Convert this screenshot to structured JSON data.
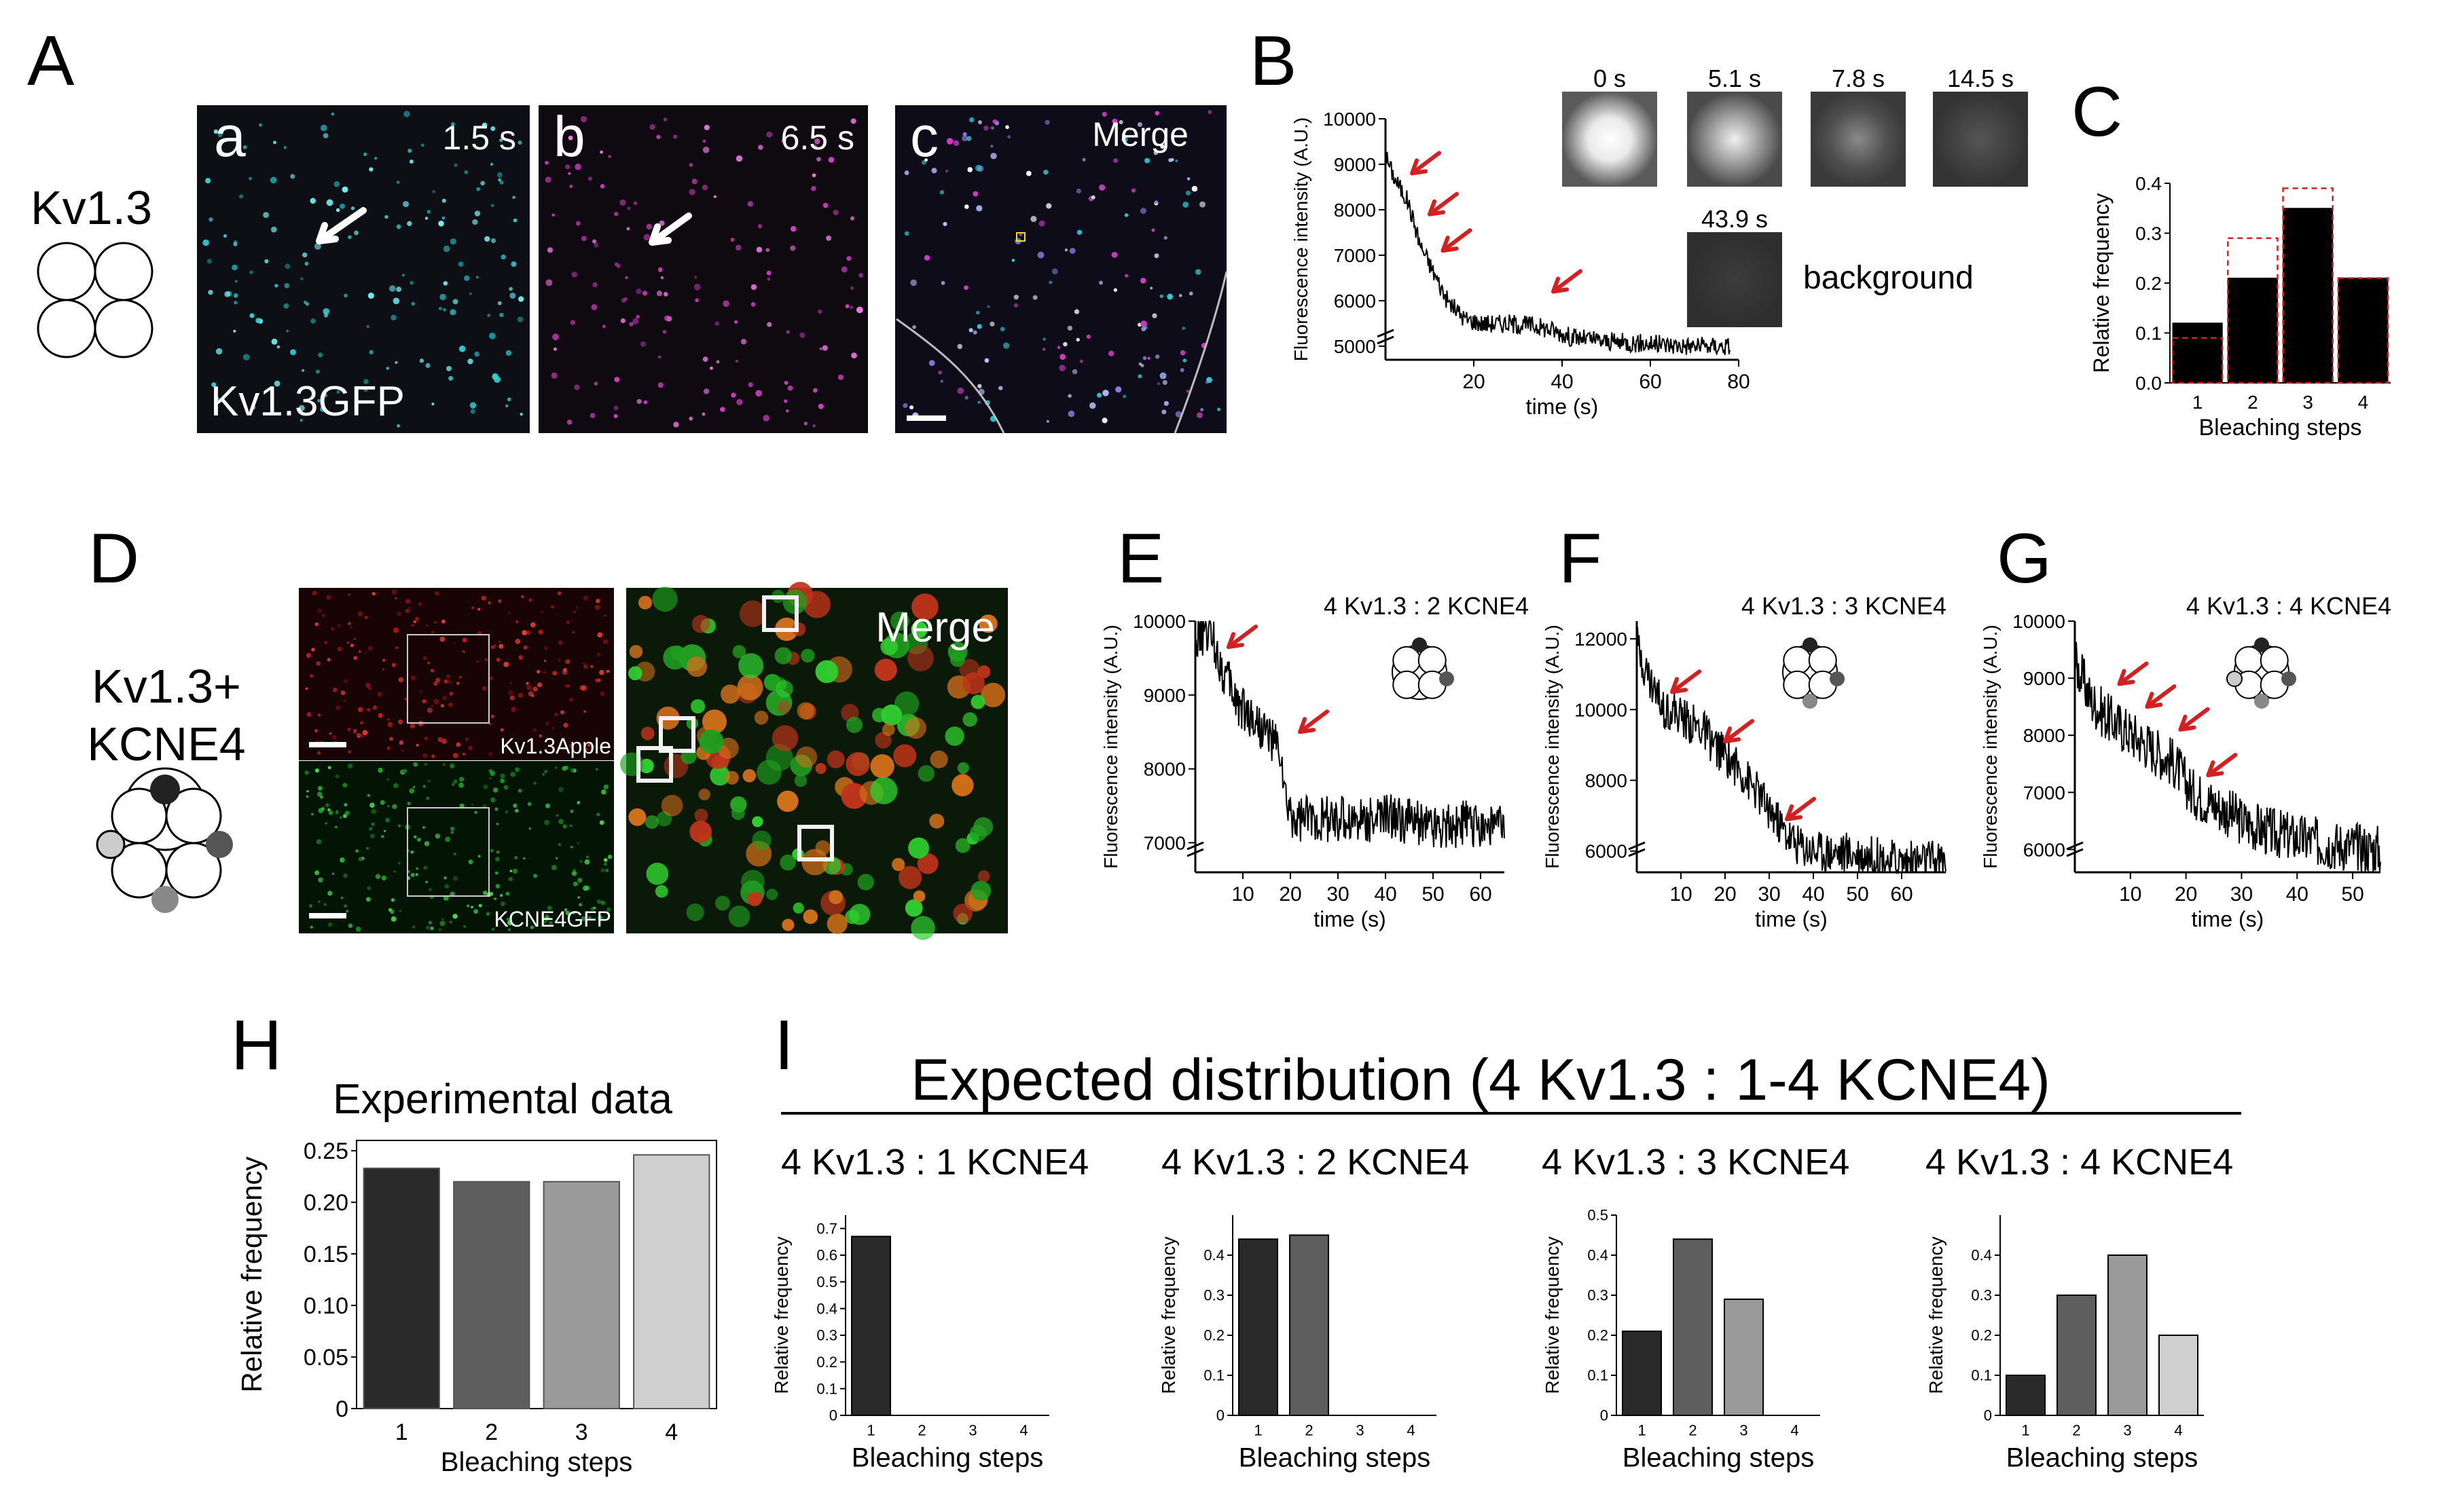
{
  "panel_letters": {
    "A": "A",
    "B": "B",
    "C": "C",
    "D": "D",
    "E": "E",
    "F": "F",
    "G": "G",
    "H": "H",
    "I": "I"
  },
  "panelA": {
    "construct": "Kv1.3",
    "sub_a": "a",
    "sub_b": "b",
    "sub_c": "c",
    "time_a": "1.5 s",
    "time_b": "6.5 s",
    "merge": "Merge",
    "label": "Kv1.3GFP",
    "colors": {
      "cyan": "#2fd1d6",
      "magenta": "#d63fc8"
    }
  },
  "panelB": {
    "ylabel": "Fluorescence intensity (A.U.)",
    "xlabel": "time (s)",
    "yticks": [
      "10000",
      "9000",
      "8000",
      "7000",
      "6000",
      "5000"
    ],
    "xticks": [
      "20",
      "40",
      "60",
      "80"
    ],
    "thumbs": [
      "0 s",
      "5.1 s",
      "7.8 s",
      "14.5 s"
    ],
    "thumb_bg_time": "43.9 s",
    "background": "background"
  },
  "panelC": {
    "ylabel": "Relative frequency",
    "xlabel": "Bleaching steps",
    "yticks": [
      "0.4",
      "0.3",
      "0.2",
      "0.1",
      "0.0"
    ],
    "categories": [
      "1",
      "2",
      "3",
      "4"
    ],
    "values": [
      0.12,
      0.21,
      0.35,
      0.21
    ],
    "expected": [
      0.09,
      0.29,
      0.39,
      0.21
    ]
  },
  "panelD": {
    "construct_l1": "Kv1.3+",
    "construct_l2": "KCNE4",
    "red_label": "Kv1.3Apple",
    "green_label": "KCNE4GFP",
    "merge": "Merge"
  },
  "panelE": {
    "title": "4 Kv1.3 : 2 KCNE4",
    "ylabel": "Fluorescence intensity (A.U.)",
    "xlabel": "time (s)",
    "yticks": [
      "10000",
      "9000",
      "8000",
      "7000"
    ],
    "xticks": [
      "10",
      "20",
      "30",
      "40",
      "50",
      "60"
    ]
  },
  "panelF": {
    "title": "4 Kv1.3 : 3 KCNE4",
    "ylabel": "Fluorescence intensity (A.U.)",
    "xlabel": "time (s)",
    "yticks": [
      "12000",
      "10000",
      "8000",
      "6000"
    ],
    "xticks": [
      "10",
      "20",
      "30",
      "40",
      "50",
      "60"
    ]
  },
  "panelG": {
    "title": "4 Kv1.3 : 4 KCNE4",
    "ylabel": "Fluorescence intensity (A.U.)",
    "xlabel": "time (s)",
    "yticks": [
      "10000",
      "9000",
      "8000",
      "7000",
      "6000"
    ],
    "xticks": [
      "10",
      "20",
      "30",
      "40",
      "50"
    ]
  },
  "panelH": {
    "title": "Experimental data",
    "ylabel": "Relative frequency",
    "xlabel": "Bleaching steps",
    "yticks": [
      "0.25",
      "0.20",
      "0.15",
      "0.10",
      "0.05",
      "0"
    ]
  },
  "panelI": {
    "title": "Expected distribution (4 Kv1.3 : 1-4 KCNE4)"
  },
  "chart_data": [
    {
      "type": "line",
      "id": "B",
      "xlabel": "time (s)",
      "ylabel": "Fluorescence intensity (A.U.)",
      "xlim": [
        0,
        80
      ],
      "ylim": [
        4700,
        10000
      ],
      "x": [
        0,
        2,
        5,
        8,
        10,
        14,
        18,
        22,
        28,
        34,
        38,
        42,
        50,
        60,
        70,
        78
      ],
      "y": [
        9200,
        8700,
        8200,
        7200,
        6800,
        6000,
        5600,
        5500,
        5500,
        5450,
        5350,
        5200,
        5100,
        5050,
        5000,
        5000
      ]
    },
    {
      "type": "bar",
      "id": "C",
      "categories": [
        "1",
        "2",
        "3",
        "4"
      ],
      "values": [
        0.12,
        0.21,
        0.35,
        0.21
      ],
      "series": [
        {
          "values": [
            0.12,
            0.21,
            0.35,
            0.21
          ]
        },
        {
          "values": [
            0.09,
            0.29,
            0.39,
            0.21
          ]
        }
      ],
      "xlabel": "Bleaching steps",
      "ylabel": "Relative frequency",
      "ylim": [
        0,
        0.4
      ]
    },
    {
      "type": "line",
      "id": "E",
      "title": "4 Kv1.3 : 2 KCNE4",
      "xlabel": "time (s)",
      "ylabel": "Fluorescence intensity (A.U.)",
      "xlim": [
        0,
        65
      ],
      "ylim": [
        6600,
        10000
      ],
      "x": [
        0,
        3,
        6,
        9,
        12,
        15,
        18,
        19,
        21,
        25,
        30,
        40,
        50,
        60,
        65
      ],
      "y": [
        9700,
        9900,
        9300,
        8900,
        8700,
        8500,
        8200,
        7500,
        7300,
        7350,
        7300,
        7350,
        7250,
        7250,
        7200
      ]
    },
    {
      "type": "line",
      "id": "F",
      "title": "4 Kv1.3 : 3 KCNE4",
      "xlabel": "time (s)",
      "ylabel": "Fluorescence intensity (A.U.)",
      "xlim": [
        0,
        70
      ],
      "ylim": [
        5400,
        12500
      ],
      "x": [
        0,
        3,
        6,
        9,
        12,
        15,
        18,
        21,
        25,
        30,
        33,
        36,
        40,
        50,
        60,
        70
      ],
      "y": [
        11800,
        10800,
        10100,
        9900,
        9600,
        9400,
        8900,
        8600,
        8000,
        7200,
        6600,
        6200,
        6000,
        5900,
        5700,
        5700
      ]
    },
    {
      "type": "line",
      "id": "G",
      "title": "4 Kv1.3 : 4 KCNE4",
      "xlabel": "time (s)",
      "ylabel": "Fluorescence intensity (A.U.)",
      "xlim": [
        0,
        55
      ],
      "ylim": [
        5600,
        10000
      ],
      "x": [
        0,
        3,
        6,
        9,
        12,
        15,
        18,
        21,
        25,
        30,
        35,
        40,
        45,
        50,
        55
      ],
      "y": [
        9300,
        8600,
        8300,
        8100,
        7900,
        7700,
        7500,
        7000,
        6800,
        6500,
        6300,
        6200,
        6100,
        6050,
        6000
      ]
    },
    {
      "type": "bar",
      "id": "H",
      "title": "Experimental data",
      "categories": [
        "1",
        "2",
        "3",
        "4"
      ],
      "values": [
        0.233,
        0.22,
        0.22,
        0.246
      ],
      "xlabel": "Bleaching steps",
      "ylabel": "Relative frequency",
      "ylim": [
        0,
        0.26
      ]
    },
    {
      "type": "bar",
      "id": "I1",
      "title": "4 Kv1.3 : 1 KCNE4",
      "categories": [
        "1",
        "2",
        "3",
        "4"
      ],
      "values": [
        0.67,
        0,
        0,
        0
      ],
      "xlabel": "Bleaching steps",
      "ylabel": "Relative frequency",
      "ylim": [
        0,
        0.75
      ],
      "yticks": [
        "0",
        "0.1",
        "0.2",
        "0.3",
        "0.4",
        "0.5",
        "0.6",
        "0.7"
      ]
    },
    {
      "type": "bar",
      "id": "I2",
      "title": "4 Kv1.3 : 2 KCNE4",
      "categories": [
        "1",
        "2",
        "3",
        "4"
      ],
      "values": [
        0.44,
        0.45,
        0,
        0
      ],
      "xlabel": "Bleaching steps",
      "ylabel": "Relative frequency",
      "ylim": [
        0,
        0.5
      ],
      "yticks": [
        "0",
        "0.1",
        "0.2",
        "0.3",
        "0.4"
      ]
    },
    {
      "type": "bar",
      "id": "I3",
      "title": "4 Kv1.3 : 3 KCNE4",
      "categories": [
        "1",
        "2",
        "3",
        "4"
      ],
      "values": [
        0.21,
        0.44,
        0.29,
        0
      ],
      "xlabel": "Bleaching steps",
      "ylabel": "Relative frequency",
      "ylim": [
        0,
        0.5
      ],
      "yticks": [
        "0",
        "0.1",
        "0.2",
        "0.3",
        "0.4",
        "0.5"
      ]
    },
    {
      "type": "bar",
      "id": "I4",
      "title": "4 Kv1.3 : 4 KCNE4",
      "categories": [
        "1",
        "2",
        "3",
        "4"
      ],
      "values": [
        0.1,
        0.3,
        0.4,
        0.2
      ],
      "xlabel": "Bleaching steps",
      "ylabel": "Relative frequency",
      "ylim": [
        0,
        0.5
      ],
      "yticks": [
        "0",
        "0.1",
        "0.2",
        "0.3",
        "0.4"
      ]
    }
  ],
  "bar_colors": [
    "#2a2a2a",
    "#5e5e5e",
    "#9a9a9a",
    "#cfcfcf"
  ],
  "arrow_color": "#d42020"
}
